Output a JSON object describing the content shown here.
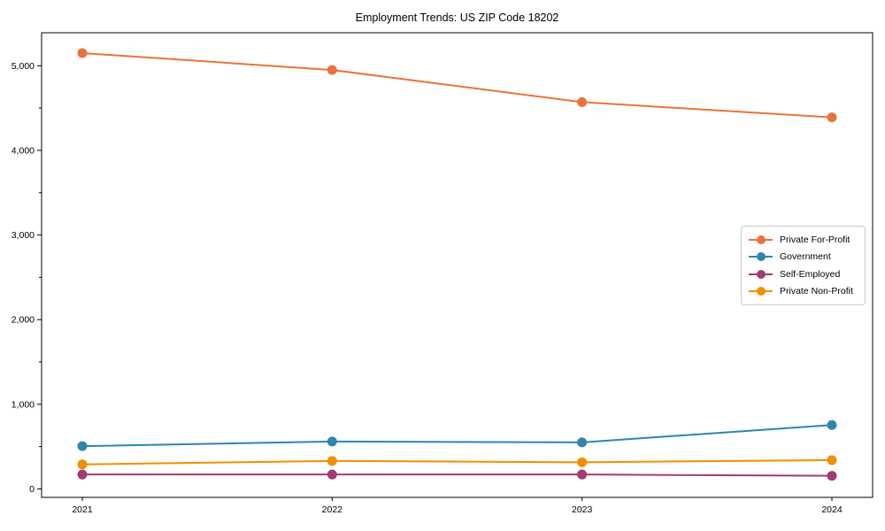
{
  "chart_data": {
    "type": "line",
    "title": "Employment Trends: US ZIP Code 18202",
    "categories": [
      "2021",
      "2022",
      "2023",
      "2024"
    ],
    "series": [
      {
        "name": "Private For-Profit",
        "color": "#e8743b",
        "values": [
          5150,
          4950,
          4570,
          4390
        ]
      },
      {
        "name": "Government",
        "color": "#2e86ab",
        "values": [
          505,
          560,
          550,
          755
        ]
      },
      {
        "name": "Self-Employed",
        "color": "#a23b72",
        "values": [
          170,
          170,
          170,
          155
        ]
      },
      {
        "name": "Private Non-Profit",
        "color": "#f18f01",
        "values": [
          290,
          330,
          315,
          340
        ]
      }
    ],
    "xlabel": "",
    "ylabel": "",
    "ylim": [
      -100,
      5390
    ],
    "y_ticks": [
      {
        "value": 0,
        "label": "0"
      },
      {
        "value": 1000,
        "label": "1,000"
      },
      {
        "value": 2000,
        "label": "2,000"
      },
      {
        "value": 3000,
        "label": "3,000"
      },
      {
        "value": 4000,
        "label": "4,000"
      },
      {
        "value": 5000,
        "label": "5,000"
      }
    ],
    "y_minor_ticks": [
      500,
      1500,
      2500,
      3500,
      4500
    ],
    "grid": false,
    "legend_position": "right",
    "frame_color": "#000000",
    "background_color": "#ffffff"
  }
}
